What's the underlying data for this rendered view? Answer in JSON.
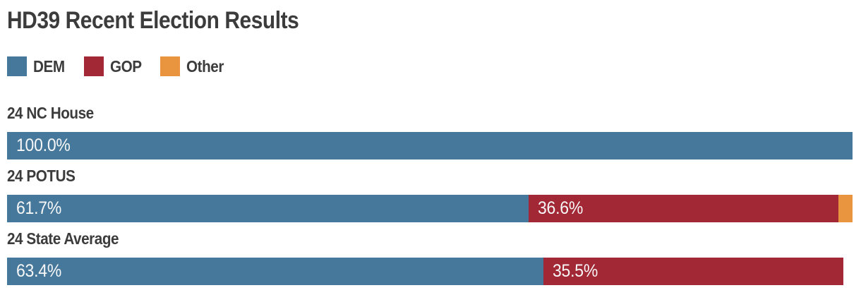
{
  "title": "HD39 Recent Election Results",
  "colors": {
    "DEM": "#45789B",
    "GOP": "#A22836",
    "Other": "#E9953F"
  },
  "text_colors": {
    "heading": "#3C3C3C",
    "bar_value": "#F7F7F7"
  },
  "legend": {
    "items": [
      {
        "party": "DEM",
        "label": "DEM"
      },
      {
        "party": "GOP",
        "label": "GOP"
      },
      {
        "party": "Other",
        "label": "Other"
      }
    ]
  },
  "chart_data": {
    "type": "bar",
    "orientation": "horizontal",
    "stacked": true,
    "unit": "percent",
    "xlim": [
      0,
      100
    ],
    "grid": false,
    "legend_position": "top-left",
    "title": "HD39 Recent Election Results",
    "categories": [
      "24 NC House",
      "24 POTUS",
      "24 State Average"
    ],
    "series": [
      {
        "name": "DEM",
        "values": [
          100.0,
          61.7,
          63.4
        ]
      },
      {
        "name": "GOP",
        "values": [
          0,
          36.6,
          35.5
        ]
      },
      {
        "name": "Other",
        "values": [
          0,
          1.7,
          0
        ]
      }
    ],
    "rows": [
      {
        "category": "24 NC House",
        "segments": [
          {
            "party": "DEM",
            "value": 100.0,
            "label": "100.0%"
          }
        ]
      },
      {
        "category": "24 POTUS",
        "segments": [
          {
            "party": "DEM",
            "value": 61.7,
            "label": "61.7%"
          },
          {
            "party": "GOP",
            "value": 36.6,
            "label": "36.6%"
          },
          {
            "party": "Other",
            "value": 1.7,
            "label": ""
          }
        ]
      },
      {
        "category": "24 State Average",
        "segments": [
          {
            "party": "DEM",
            "value": 63.4,
            "label": "63.4%"
          },
          {
            "party": "GOP",
            "value": 35.5,
            "label": "35.5%"
          }
        ]
      }
    ]
  }
}
